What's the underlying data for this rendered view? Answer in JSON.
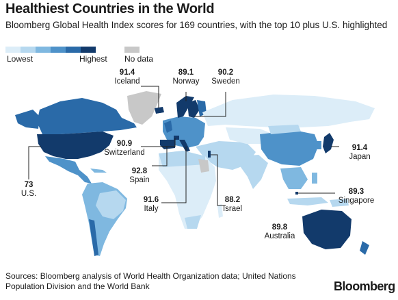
{
  "title": "Healthiest Countries in the World",
  "subtitle": "Bloomberg Global Health Index scores for 169 countries, with the top 10 plus U.S. highlighted",
  "legend": {
    "lowest": "Lowest",
    "highest": "Highest",
    "no_data": "No data",
    "scale_colors": [
      "#dcedf8",
      "#b6d8ef",
      "#7fb8e0",
      "#4e92c9",
      "#2a6aa8",
      "#123a6b"
    ],
    "no_data_color": "#c8c8c8"
  },
  "countries": [
    {
      "name": "Iceland",
      "score": "91.4"
    },
    {
      "name": "Norway",
      "score": "89.1"
    },
    {
      "name": "Sweden",
      "score": "90.2"
    },
    {
      "name": "Switzerland",
      "score": "90.9"
    },
    {
      "name": "Japan",
      "score": "91.4"
    },
    {
      "name": "U.S.",
      "score": "73"
    },
    {
      "name": "Spain",
      "score": "92.8"
    },
    {
      "name": "Italy",
      "score": "91.6"
    },
    {
      "name": "Israel",
      "score": "88.2"
    },
    {
      "name": "Singapore",
      "score": "89.3"
    },
    {
      "name": "Australia",
      "score": "89.8"
    }
  ],
  "source": "Sources: Bloomberg analysis of World Health Organization data; United Nations Population Division and the World Bank",
  "brand": "Bloomberg"
}
